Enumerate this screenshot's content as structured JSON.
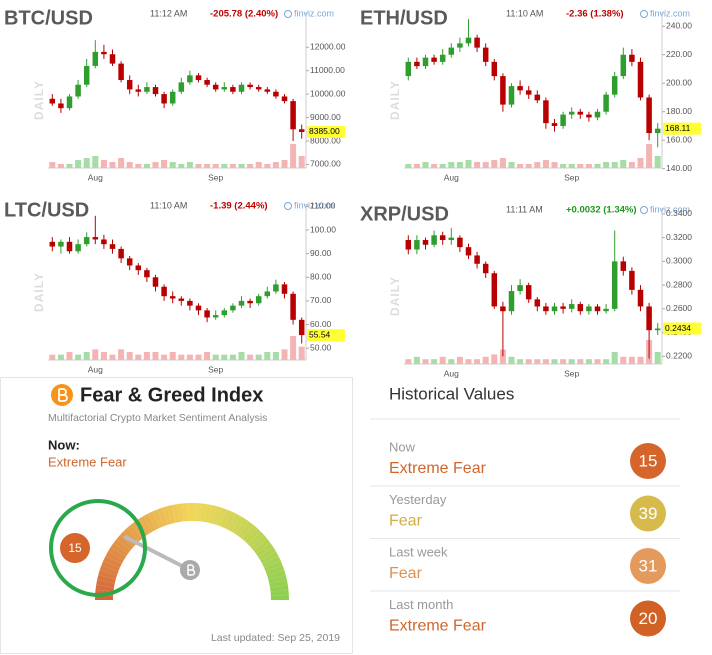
{
  "chart_data": [
    {
      "type": "candlestick",
      "title": "BTC/USD",
      "time": "11:12 AM",
      "change": "-205.78 (2.40%)",
      "change_color": "#c00000",
      "source": "finviz.com",
      "period": "DAILY",
      "categories": [
        null,
        null,
        null,
        null,
        null,
        "Aug",
        null,
        null,
        null,
        null,
        null,
        null,
        null,
        null,
        null,
        null,
        null,
        null,
        null,
        "Sep",
        null,
        null,
        null,
        null,
        null,
        null,
        null,
        null,
        null,
        null
      ],
      "open": [
        9800,
        9600,
        9400,
        9900,
        10400,
        11200,
        11800,
        11700,
        11300,
        10600,
        10200,
        10100,
        10300,
        10000,
        9600,
        10100,
        10500,
        10800,
        10600,
        10400,
        10200,
        10300,
        10100,
        10400,
        10300,
        10200,
        10100,
        9900,
        9700,
        8500
      ],
      "high": [
        10000,
        9800,
        10000,
        10600,
        11500,
        12300,
        12100,
        11900,
        11400,
        10800,
        10400,
        10500,
        10400,
        10100,
        10200,
        10700,
        11000,
        10900,
        10700,
        10500,
        10500,
        10400,
        10500,
        10500,
        10400,
        10300,
        10200,
        10000,
        9800,
        8700
      ],
      "low": [
        9500,
        9200,
        9300,
        9800,
        10300,
        11100,
        11500,
        11200,
        10500,
        10000,
        9900,
        10000,
        9900,
        9400,
        9500,
        10000,
        10400,
        10500,
        10300,
        10100,
        10100,
        10000,
        10000,
        10200,
        10100,
        10000,
        9800,
        9600,
        8000,
        8100
      ],
      "close": [
        9600,
        9400,
        9900,
        10400,
        11200,
        11800,
        11700,
        11300,
        10600,
        10200,
        10100,
        10300,
        10000,
        9600,
        10100,
        10500,
        10800,
        10600,
        10400,
        10200,
        10300,
        10100,
        10400,
        10300,
        10200,
        10100,
        9900,
        9700,
        8500,
        8385
      ],
      "volume": [
        3,
        2,
        2,
        4,
        5,
        6,
        4,
        3,
        5,
        3,
        2,
        2,
        3,
        4,
        3,
        2,
        3,
        2,
        2,
        2,
        2,
        2,
        2,
        2,
        3,
        2,
        3,
        4,
        12,
        6
      ],
      "up_color": "#2f9e2f",
      "down_color": "#b80000",
      "vol_up_color": "#a6dca6",
      "vol_down_color": "#f4b4b4",
      "last_color": "#ffff33",
      "last": {
        "value": 8385,
        "label": "8385.00"
      },
      "ylim": [
        6850,
        13500
      ],
      "yticks": [
        {
          "value": 12000,
          "label": "12000.00"
        },
        {
          "value": 11000,
          "label": "11000.00"
        },
        {
          "value": 10000,
          "label": "10000.00"
        },
        {
          "value": 9000,
          "label": "9000.00"
        },
        {
          "value": 8000,
          "label": "8000.00"
        },
        {
          "value": 7000,
          "label": "7000.00"
        }
      ]
    },
    {
      "type": "candlestick",
      "title": "ETH/USD",
      "time": "11:10 AM",
      "change": "-2.36 (1.38%)",
      "change_color": "#c00000",
      "source": "finviz.com",
      "period": "DAILY",
      "categories": [
        null,
        null,
        null,
        null,
        null,
        "Aug",
        null,
        null,
        null,
        null,
        null,
        null,
        null,
        null,
        null,
        null,
        null,
        null,
        null,
        "Sep",
        null,
        null,
        null,
        null,
        null,
        null,
        null,
        null,
        null,
        null
      ],
      "open": [
        205,
        215,
        212,
        218,
        215,
        220,
        225,
        228,
        232,
        225,
        215,
        205,
        185,
        198,
        195,
        192,
        188,
        172,
        170,
        178,
        180,
        178,
        176,
        180,
        192,
        205,
        220,
        215,
        190,
        165
      ],
      "high": [
        218,
        218,
        220,
        220,
        224,
        228,
        232,
        245,
        234,
        228,
        217,
        207,
        200,
        202,
        198,
        195,
        190,
        175,
        180,
        183,
        182,
        180,
        182,
        194,
        208,
        225,
        224,
        218,
        192,
        172
      ],
      "low": [
        202,
        210,
        210,
        213,
        213,
        218,
        222,
        226,
        222,
        212,
        202,
        180,
        183,
        192,
        189,
        186,
        168,
        166,
        168,
        175,
        175,
        173,
        174,
        178,
        190,
        203,
        212,
        188,
        160,
        155
      ],
      "close": [
        215,
        212,
        218,
        215,
        220,
        225,
        228,
        232,
        225,
        215,
        205,
        185,
        198,
        195,
        192,
        188,
        172,
        170,
        178,
        180,
        178,
        176,
        180,
        192,
        205,
        220,
        215,
        190,
        165,
        168.11
      ],
      "volume": [
        2,
        2,
        3,
        2,
        2,
        3,
        3,
        4,
        3,
        3,
        4,
        5,
        3,
        2,
        2,
        3,
        4,
        3,
        2,
        2,
        2,
        2,
        2,
        3,
        3,
        4,
        3,
        5,
        12,
        6
      ],
      "up_color": "#2f9e2f",
      "down_color": "#b80000",
      "vol_up_color": "#a6dca6",
      "vol_down_color": "#f4b4b4",
      "last_color": "#ffff33",
      "last": {
        "value": 168.11,
        "label": "168.11"
      },
      "ylim": [
        140.5,
        250
      ],
      "yticks": [
        {
          "value": 240,
          "label": "240.00"
        },
        {
          "value": 220,
          "label": "220.00"
        },
        {
          "value": 200,
          "label": "200.00"
        },
        {
          "value": 180,
          "label": "180.00"
        },
        {
          "value": 160,
          "label": "160.00"
        },
        {
          "value": 140,
          "label": "140.00"
        }
      ]
    },
    {
      "type": "candlestick",
      "title": "LTC/USD",
      "time": "11:10 AM",
      "change": "-1.39 (2.44%)",
      "change_color": "#c00000",
      "source": "finviz.com",
      "period": "DAILY",
      "categories": [
        null,
        null,
        null,
        null,
        null,
        "Aug",
        null,
        null,
        null,
        null,
        null,
        null,
        null,
        null,
        null,
        null,
        null,
        null,
        null,
        "Sep",
        null,
        null,
        null,
        null,
        null,
        null,
        null,
        null,
        null,
        null
      ],
      "open": [
        95,
        93,
        95,
        91,
        94,
        97,
        96,
        94,
        92,
        88,
        85,
        83,
        80,
        76,
        72,
        71,
        70,
        68,
        66,
        63,
        64,
        66,
        68,
        70,
        69,
        72,
        74,
        77,
        73,
        62
      ],
      "high": [
        97,
        96,
        97,
        96,
        99,
        106,
        98,
        96,
        93,
        89,
        86,
        84,
        81,
        77,
        74,
        72,
        71,
        69,
        67,
        66,
        67,
        69,
        72,
        71,
        73,
        76,
        79,
        78,
        74,
        63
      ],
      "low": [
        91,
        90,
        90,
        90,
        93,
        94,
        92,
        90,
        86,
        83,
        81,
        78,
        74,
        70,
        69,
        68,
        66,
        64,
        61,
        62,
        63,
        65,
        67,
        67,
        68,
        71,
        73,
        71,
        60,
        52
      ],
      "close": [
        93,
        95,
        91,
        94,
        97,
        96,
        94,
        92,
        88,
        85,
        83,
        80,
        76,
        72,
        71,
        70,
        68,
        66,
        63,
        64,
        66,
        68,
        70,
        69,
        72,
        74,
        77,
        73,
        62,
        55.54
      ],
      "volume": [
        2,
        2,
        3,
        2,
        3,
        4,
        3,
        2,
        4,
        3,
        2,
        3,
        3,
        2,
        3,
        2,
        2,
        2,
        3,
        2,
        2,
        2,
        3,
        2,
        2,
        3,
        3,
        4,
        9,
        5
      ],
      "up_color": "#2f9e2f",
      "down_color": "#b80000",
      "vol_up_color": "#a6dca6",
      "vol_down_color": "#f4b4b4",
      "last_color": "#ffff33",
      "last": {
        "value": 55.54,
        "label": "55.54"
      },
      "ylim": [
        45,
        111
      ],
      "yticks": [
        {
          "value": 110,
          "label": "110.00"
        },
        {
          "value": 100,
          "label": "100.00"
        },
        {
          "value": 90,
          "label": "90.00"
        },
        {
          "value": 80,
          "label": "80.00"
        },
        {
          "value": 70,
          "label": "70.00"
        },
        {
          "value": 60,
          "label": "60.00"
        },
        {
          "value": 50,
          "label": "50.00"
        }
      ]
    },
    {
      "type": "candlestick",
      "title": "XRP/USD",
      "time": "11:11 AM",
      "change": "+0.0032 (1.34%)",
      "change_color": "#1a9a1a",
      "source": "finviz.com",
      "period": "DAILY",
      "categories": [
        null,
        null,
        null,
        null,
        null,
        "Aug",
        null,
        null,
        null,
        null,
        null,
        null,
        null,
        null,
        null,
        null,
        null,
        null,
        null,
        "Sep",
        null,
        null,
        null,
        null,
        null,
        null,
        null,
        null,
        null,
        null
      ],
      "open": [
        0.318,
        0.31,
        0.318,
        0.314,
        0.322,
        0.318,
        0.32,
        0.312,
        0.305,
        0.298,
        0.29,
        0.262,
        0.258,
        0.275,
        0.28,
        0.268,
        0.262,
        0.258,
        0.262,
        0.26,
        0.264,
        0.258,
        0.262,
        0.258,
        0.26,
        0.3,
        0.292,
        0.276,
        0.262,
        0.242
      ],
      "high": [
        0.322,
        0.322,
        0.32,
        0.326,
        0.325,
        0.328,
        0.322,
        0.315,
        0.308,
        0.3,
        0.292,
        0.266,
        0.28,
        0.285,
        0.282,
        0.27,
        0.265,
        0.265,
        0.265,
        0.268,
        0.266,
        0.264,
        0.264,
        0.264,
        0.326,
        0.304,
        0.295,
        0.28,
        0.265,
        0.248
      ],
      "low": [
        0.306,
        0.306,
        0.31,
        0.312,
        0.314,
        0.314,
        0.308,
        0.302,
        0.294,
        0.286,
        0.26,
        0.22,
        0.255,
        0.272,
        0.265,
        0.258,
        0.255,
        0.255,
        0.256,
        0.257,
        0.255,
        0.255,
        0.255,
        0.256,
        0.258,
        0.288,
        0.272,
        0.258,
        0.218,
        0.238
      ],
      "close": [
        0.31,
        0.318,
        0.314,
        0.322,
        0.318,
        0.32,
        0.312,
        0.305,
        0.298,
        0.29,
        0.262,
        0.258,
        0.275,
        0.28,
        0.268,
        0.262,
        0.258,
        0.262,
        0.26,
        0.264,
        0.258,
        0.262,
        0.258,
        0.26,
        0.3,
        0.292,
        0.276,
        0.262,
        0.242,
        0.2434
      ],
      "volume": [
        2,
        3,
        2,
        2,
        3,
        2,
        3,
        2,
        2,
        3,
        4,
        6,
        3,
        2,
        2,
        2,
        2,
        2,
        2,
        2,
        2,
        2,
        2,
        2,
        5,
        3,
        3,
        3,
        10,
        5
      ],
      "up_color": "#2f9e2f",
      "down_color": "#b80000",
      "vol_up_color": "#a6dca6",
      "vol_down_color": "#f4b4b4",
      "last_color": "#ffff33",
      "last": {
        "value": 0.2434,
        "label": "0.2434"
      },
      "ylim": [
        0.2135,
        0.345
      ],
      "yticks": [
        {
          "value": 0.34,
          "label": "0.3400"
        },
        {
          "value": 0.32,
          "label": "0.3200"
        },
        {
          "value": 0.3,
          "label": "0.3000"
        },
        {
          "value": 0.28,
          "label": "0.2800"
        },
        {
          "value": 0.26,
          "label": "0.2600"
        },
        {
          "value": 0.24,
          "label": "0.2400"
        },
        {
          "value": 0.22,
          "label": "0.2200"
        }
      ]
    }
  ],
  "fear_greed": {
    "title": "Fear & Greed Index",
    "subtitle": "Multifactorial Crypto Market Sentiment Analysis",
    "now_label": "Now:",
    "now_status": "Extreme Fear",
    "value": 15,
    "updated": "Last updated: Sep 25, 2019"
  },
  "historical": {
    "title": "Historical Values",
    "rows": [
      {
        "label": "Now",
        "status": "Extreme Fear",
        "value": 15,
        "color": "#d5652a",
        "status_color": "#d0662c"
      },
      {
        "label": "Yesterday",
        "status": "Fear",
        "value": 39,
        "color": "#d6bb4c",
        "status_color": "#cfae44"
      },
      {
        "label": "Last week",
        "status": "Fear",
        "value": 31,
        "color": "#e39a5c",
        "status_color": "#df8f4e"
      },
      {
        "label": "Last month",
        "status": "Extreme Fear",
        "value": 20,
        "color": "#d06226",
        "status_color": "#d0662c"
      }
    ]
  }
}
